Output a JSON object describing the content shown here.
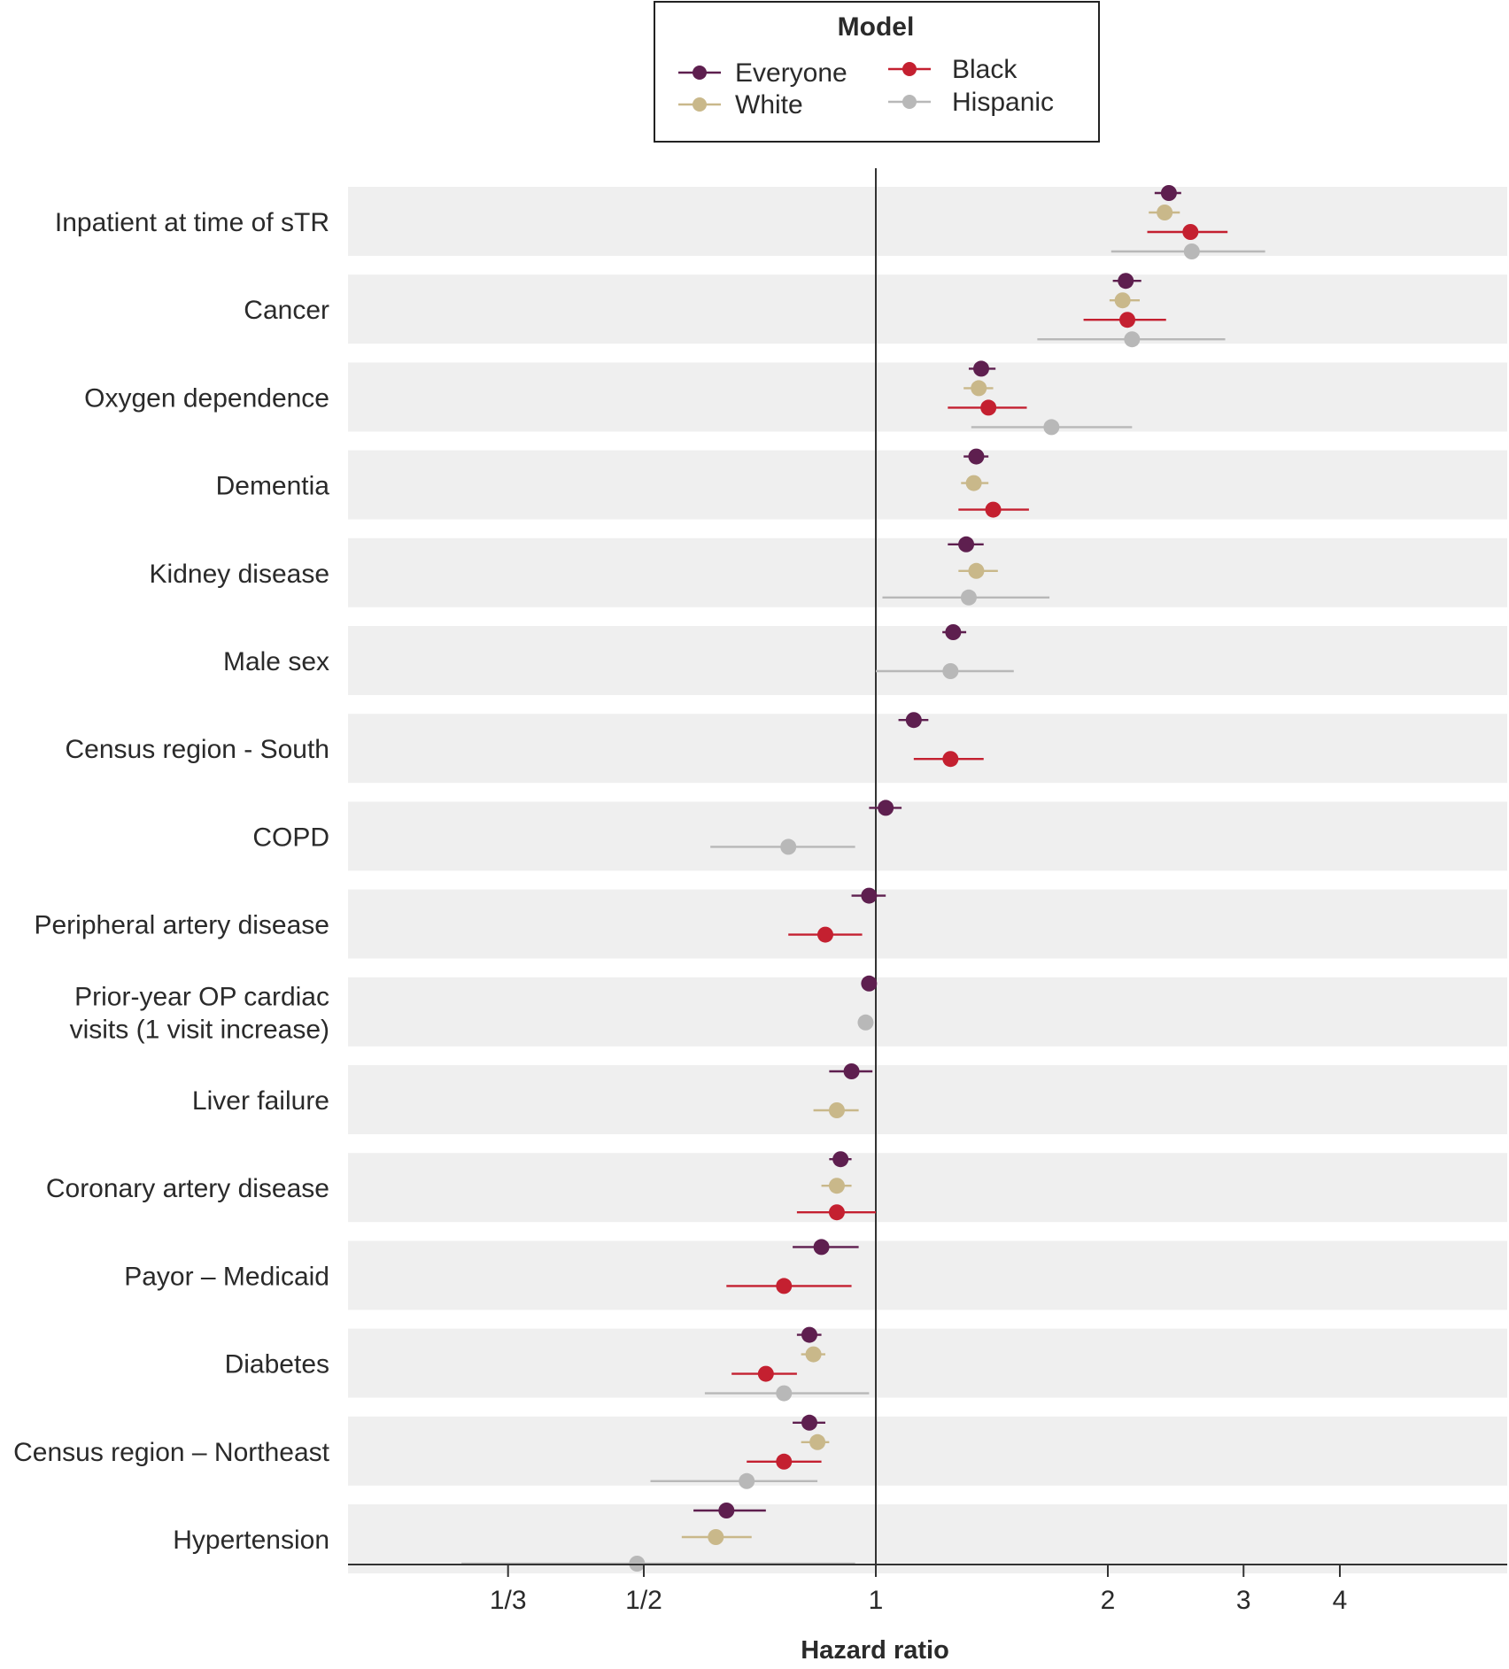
{
  "chart_data": {
    "type": "forest",
    "title": "",
    "xlabel": "Hazard ratio",
    "ylabel": "",
    "xscale": "log",
    "xlim": [
      0.25,
      6.5
    ],
    "xticks": [
      {
        "value": 0.3333,
        "label": "1/3"
      },
      {
        "value": 0.5,
        "label": "1/2"
      },
      {
        "value": 1,
        "label": "1"
      },
      {
        "value": 2,
        "label": "2"
      },
      {
        "value": 3,
        "label": "3"
      },
      {
        "value": 4,
        "label": "4"
      }
    ],
    "reference_line": 1,
    "legend": {
      "title": "Model",
      "placement": "top-center",
      "entries": [
        {
          "name": "Everyone",
          "color": "#5e1f4f"
        },
        {
          "name": "White",
          "color": "#c9b88a"
        },
        {
          "name": "Black",
          "color": "#c42030"
        },
        {
          "name": "Hispanic",
          "color": "#b8b8b8"
        }
      ]
    },
    "series": [
      {
        "name": "Everyone",
        "color": "#5e1f4f"
      },
      {
        "name": "White",
        "color": "#c9b88a"
      },
      {
        "name": "Black",
        "color": "#c42030"
      },
      {
        "name": "Hispanic",
        "color": "#b8b8b8"
      }
    ],
    "rows": [
      {
        "label": [
          "Inpatient at time of sTR"
        ],
        "estimates": [
          {
            "series": "Everyone",
            "hr": 2.4,
            "lo": 2.3,
            "hi": 2.49
          },
          {
            "series": "White",
            "hr": 2.37,
            "lo": 2.26,
            "hi": 2.48
          },
          {
            "series": "Black",
            "hr": 2.56,
            "lo": 2.25,
            "hi": 2.86
          },
          {
            "series": "Hispanic",
            "hr": 2.57,
            "lo": 2.02,
            "hi": 3.2
          }
        ]
      },
      {
        "label": [
          "Cancer"
        ],
        "estimates": [
          {
            "series": "Everyone",
            "hr": 2.11,
            "lo": 2.03,
            "hi": 2.21
          },
          {
            "series": "White",
            "hr": 2.09,
            "lo": 2.01,
            "hi": 2.2
          },
          {
            "series": "Black",
            "hr": 2.12,
            "lo": 1.86,
            "hi": 2.38
          },
          {
            "series": "Hispanic",
            "hr": 2.15,
            "lo": 1.62,
            "hi": 2.84
          }
        ]
      },
      {
        "label": [
          "Oxygen dependence"
        ],
        "estimates": [
          {
            "series": "Everyone",
            "hr": 1.37,
            "lo": 1.32,
            "hi": 1.43
          },
          {
            "series": "White",
            "hr": 1.36,
            "lo": 1.3,
            "hi": 1.42
          },
          {
            "series": "Black",
            "hr": 1.4,
            "lo": 1.24,
            "hi": 1.57
          },
          {
            "series": "Hispanic",
            "hr": 1.69,
            "lo": 1.33,
            "hi": 2.15
          }
        ]
      },
      {
        "label": [
          "Dementia"
        ],
        "estimates": [
          {
            "series": "Everyone",
            "hr": 1.35,
            "lo": 1.3,
            "hi": 1.4
          },
          {
            "series": "White",
            "hr": 1.34,
            "lo": 1.29,
            "hi": 1.4
          },
          {
            "series": "Black",
            "hr": 1.42,
            "lo": 1.28,
            "hi": 1.58
          }
        ]
      },
      {
        "label": [
          "Kidney disease"
        ],
        "estimates": [
          {
            "series": "Everyone",
            "hr": 1.31,
            "lo": 1.24,
            "hi": 1.38
          },
          {
            "series": "White",
            "hr": 1.35,
            "lo": 1.28,
            "hi": 1.44
          },
          {
            "series": "Hispanic",
            "hr": 1.32,
            "lo": 1.02,
            "hi": 1.68
          }
        ]
      },
      {
        "label": [
          "Male sex"
        ],
        "estimates": [
          {
            "series": "Everyone",
            "hr": 1.26,
            "lo": 1.22,
            "hi": 1.31
          },
          {
            "series": "Hispanic",
            "hr": 1.25,
            "lo": 1.0,
            "hi": 1.51
          }
        ]
      },
      {
        "label": [
          "Census region - South"
        ],
        "estimates": [
          {
            "series": "Everyone",
            "hr": 1.12,
            "lo": 1.07,
            "hi": 1.17
          },
          {
            "series": "Black",
            "hr": 1.25,
            "lo": 1.12,
            "hi": 1.38
          }
        ]
      },
      {
        "label": [
          "COPD"
        ],
        "estimates": [
          {
            "series": "Everyone",
            "hr": 1.03,
            "lo": 0.98,
            "hi": 1.08
          },
          {
            "series": "Hispanic",
            "hr": 0.77,
            "lo": 0.61,
            "hi": 0.94
          }
        ]
      },
      {
        "label": [
          "Peripheral artery disease"
        ],
        "estimates": [
          {
            "series": "Everyone",
            "hr": 0.98,
            "lo": 0.93,
            "hi": 1.03
          },
          {
            "series": "Black",
            "hr": 0.86,
            "lo": 0.77,
            "hi": 0.96
          }
        ]
      },
      {
        "label": [
          "Prior-year OP cardiac",
          "visits (1 visit increase)"
        ],
        "estimates": [
          {
            "series": "Everyone",
            "hr": 0.98,
            "lo": 0.97,
            "hi": 0.99
          },
          {
            "series": "Hispanic",
            "hr": 0.97,
            "lo": 0.96,
            "hi": 0.99
          }
        ]
      },
      {
        "label": [
          "Liver failure"
        ],
        "estimates": [
          {
            "series": "Everyone",
            "hr": 0.93,
            "lo": 0.87,
            "hi": 0.99
          },
          {
            "series": "White",
            "hr": 0.89,
            "lo": 0.83,
            "hi": 0.95
          }
        ]
      },
      {
        "label": [
          "Coronary artery disease"
        ],
        "estimates": [
          {
            "series": "Everyone",
            "hr": 0.9,
            "lo": 0.87,
            "hi": 0.93
          },
          {
            "series": "White",
            "hr": 0.89,
            "lo": 0.85,
            "hi": 0.93
          },
          {
            "series": "Black",
            "hr": 0.89,
            "lo": 0.79,
            "hi": 1.0
          }
        ]
      },
      {
        "label": [
          "Payor – Medicaid"
        ],
        "estimates": [
          {
            "series": "Everyone",
            "hr": 0.85,
            "lo": 0.78,
            "hi": 0.95
          },
          {
            "series": "Black",
            "hr": 0.76,
            "lo": 0.64,
            "hi": 0.93
          }
        ]
      },
      {
        "label": [
          "Diabetes"
        ],
        "estimates": [
          {
            "series": "Everyone",
            "hr": 0.82,
            "lo": 0.79,
            "hi": 0.85
          },
          {
            "series": "White",
            "hr": 0.83,
            "lo": 0.8,
            "hi": 0.86
          },
          {
            "series": "Black",
            "hr": 0.72,
            "lo": 0.65,
            "hi": 0.79
          },
          {
            "series": "Hispanic",
            "hr": 0.76,
            "lo": 0.6,
            "hi": 0.98
          }
        ]
      },
      {
        "label": [
          "Census region – Northeast"
        ],
        "estimates": [
          {
            "series": "Everyone",
            "hr": 0.82,
            "lo": 0.78,
            "hi": 0.86
          },
          {
            "series": "White",
            "hr": 0.84,
            "lo": 0.8,
            "hi": 0.87
          },
          {
            "series": "Black",
            "hr": 0.76,
            "lo": 0.68,
            "hi": 0.85
          },
          {
            "series": "Hispanic",
            "hr": 0.68,
            "lo": 0.51,
            "hi": 0.84
          }
        ]
      },
      {
        "label": [
          "Hypertension"
        ],
        "estimates": [
          {
            "series": "Everyone",
            "hr": 0.64,
            "lo": 0.58,
            "hi": 0.72
          },
          {
            "series": "White",
            "hr": 0.62,
            "lo": 0.56,
            "hi": 0.69
          },
          {
            "series": "Hispanic",
            "hr": 0.49,
            "lo": 0.29,
            "hi": 0.94
          }
        ]
      }
    ]
  }
}
